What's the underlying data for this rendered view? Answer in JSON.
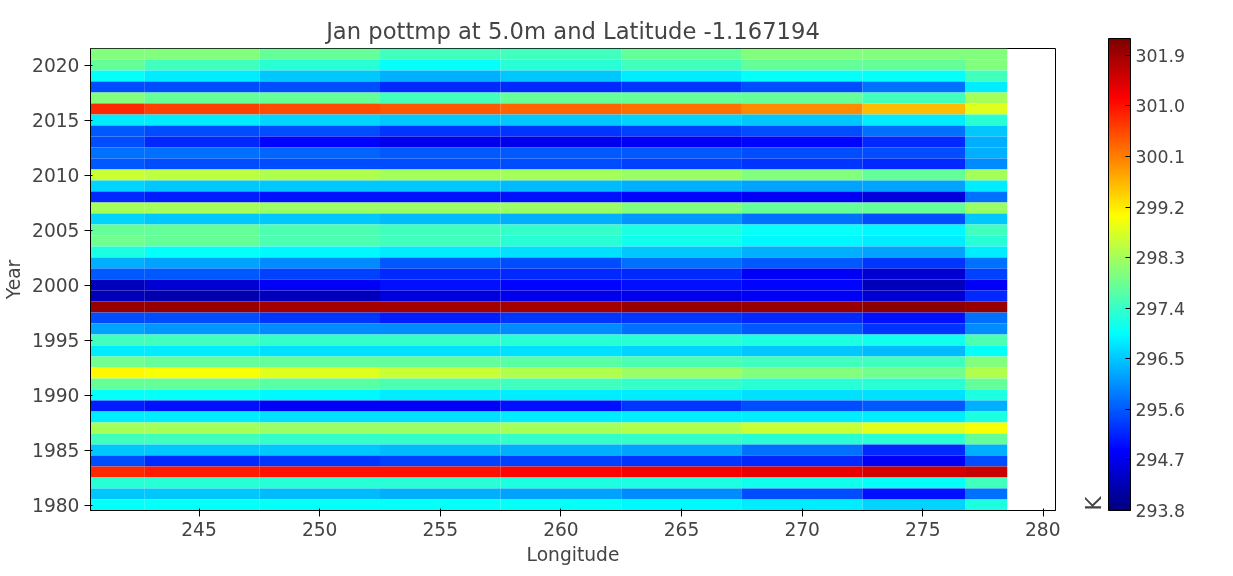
{
  "chart_data": {
    "type": "heatmap",
    "title": "Jan pottmp at 5.0m and Latitude -1.167194",
    "xlabel": "Longitude",
    "ylabel": "Year",
    "clabel": "K",
    "x": [
      240.5,
      245,
      250,
      255,
      260,
      265,
      270,
      275,
      278.5
    ],
    "y_categories": [
      null,
      "2020",
      null,
      null,
      null,
      null,
      "2015",
      null,
      null,
      null,
      null,
      "2010",
      null,
      null,
      null,
      null,
      "2005",
      null,
      null,
      null,
      null,
      "2000",
      null,
      null,
      null,
      null,
      "1995",
      null,
      null,
      null,
      null,
      "1990",
      null,
      null,
      null,
      null,
      "1985",
      null,
      null,
      null,
      null,
      "1980"
    ],
    "cells": [
      [
        298,
        298,
        297.8,
        297.5,
        297.5,
        297.8,
        298,
        298,
        298
      ],
      [
        297.8,
        297.5,
        297.3,
        297,
        297.3,
        297.5,
        297.8,
        297.8,
        298
      ],
      [
        297,
        296.8,
        296.5,
        296.3,
        296.5,
        296.8,
        297,
        297,
        297.5
      ],
      [
        295.5,
        295.5,
        295.5,
        295.2,
        295.2,
        295.3,
        295.5,
        295.8,
        296.8
      ],
      [
        298,
        297.8,
        297.8,
        297.5,
        297.8,
        297.8,
        297.8,
        297.5,
        298.3
      ],
      [
        300.8,
        300.6,
        300.5,
        300.4,
        300.3,
        300.2,
        300,
        299.6,
        298.8
      ],
      [
        296.8,
        296.8,
        296.6,
        296.5,
        296.5,
        296.6,
        296.5,
        296.8,
        297.3
      ],
      [
        295.6,
        295.5,
        295.5,
        295.3,
        295.3,
        295.4,
        295.5,
        295.8,
        296.5
      ],
      [
        295.5,
        295.2,
        294.9,
        294.7,
        294.7,
        294.8,
        294.9,
        295.2,
        296.3
      ],
      [
        295.8,
        295.8,
        295.7,
        295.6,
        295.6,
        295.6,
        295.5,
        295.5,
        296.3
      ],
      [
        295.6,
        295.5,
        295.5,
        295.5,
        295.5,
        295.4,
        295.3,
        295.2,
        296
      ],
      [
        298.6,
        298.5,
        298.4,
        298.3,
        298.3,
        298.2,
        298,
        297.8,
        298.3
      ],
      [
        296.6,
        296.5,
        296.5,
        296.5,
        296.4,
        296.3,
        296.2,
        296.2,
        296.8
      ],
      [
        295.2,
        295.1,
        295,
        295,
        295,
        294.9,
        294.8,
        294.6,
        295.8
      ],
      [
        298.3,
        298.3,
        298.2,
        298.2,
        298.2,
        298,
        297.8,
        297.8,
        298.2
      ],
      [
        296.6,
        296.5,
        296.5,
        296.4,
        296.3,
        296.1,
        295.8,
        295.5,
        296.5
      ],
      [
        297.8,
        297.8,
        297.6,
        297.5,
        297.4,
        297.2,
        297,
        296.9,
        297.5
      ],
      [
        297.9,
        297.8,
        297.6,
        297.5,
        297.3,
        297.1,
        296.9,
        296.8,
        297.3
      ],
      [
        297.2,
        297,
        296.9,
        296.8,
        296.7,
        296.5,
        296.3,
        296.2,
        296.8
      ],
      [
        296.3,
        296.2,
        296,
        295.6,
        295.5,
        295.8,
        295.6,
        295.3,
        295.8
      ],
      [
        295.6,
        295.6,
        295.4,
        295.2,
        295.2,
        295.2,
        294.8,
        294.5,
        295.4
      ],
      [
        294.3,
        294.5,
        294.8,
        295,
        294.9,
        295,
        294.9,
        294.3,
        294.8
      ],
      [
        294.3,
        294.2,
        294.3,
        294.6,
        294.7,
        294.7,
        294.8,
        294.5,
        295.2
      ],
      [
        302,
        302,
        301.9,
        301.9,
        301.9,
        302,
        302,
        302.1,
        302
      ],
      [
        295.5,
        295.5,
        295.3,
        295.1,
        295.3,
        295.3,
        295.2,
        295,
        295.8
      ],
      [
        296.2,
        296.1,
        296,
        296,
        296,
        295.8,
        295.6,
        295.3,
        296
      ],
      [
        297.5,
        297.5,
        297.4,
        297.4,
        297.3,
        297.3,
        297.2,
        297.1,
        297.6
      ],
      [
        296.8,
        296.8,
        296.7,
        296.7,
        296.7,
        296.6,
        296.5,
        296.4,
        297
      ],
      [
        297.9,
        297.8,
        297.8,
        297.8,
        297.7,
        297.6,
        297.5,
        297.5,
        298
      ],
      [
        299.1,
        299,
        298.8,
        298.6,
        298.4,
        298.2,
        298,
        297.9,
        298.4
      ],
      [
        297.8,
        297.8,
        297.7,
        297.6,
        297.5,
        297.4,
        297.3,
        297.3,
        297.8
      ],
      [
        297,
        297,
        296.9,
        296.8,
        296.8,
        296.8,
        296.7,
        296.7,
        297.2
      ],
      [
        295.1,
        295,
        294.8,
        294.8,
        295,
        295.3,
        295.5,
        295.6,
        296.3
      ],
      [
        296.8,
        296.8,
        296.7,
        296.7,
        296.8,
        296.8,
        296.8,
        296.8,
        297.2
      ],
      [
        298.3,
        298.3,
        298.2,
        298.2,
        298.3,
        298.4,
        298.6,
        298.8,
        299
      ],
      [
        297.5,
        297.5,
        297.4,
        297.4,
        297.4,
        297.4,
        297.3,
        297.3,
        297.8
      ],
      [
        296.5,
        296.5,
        296.5,
        296.4,
        296.3,
        296.2,
        295.8,
        295.2,
        296.3
      ],
      [
        295.5,
        295.2,
        295.3,
        295.4,
        295.4,
        295.3,
        295.2,
        294.8,
        295.5
      ],
      [
        300.8,
        300.9,
        301,
        301,
        301.1,
        301.2,
        301.3,
        301.5,
        301.6
      ],
      [
        297.3,
        297.3,
        297.3,
        297.3,
        297.2,
        297.2,
        297.1,
        297,
        297.5
      ],
      [
        296.5,
        296.5,
        296.4,
        296.3,
        296.2,
        296,
        295.5,
        295,
        295.8
      ],
      [
        297,
        297,
        297,
        297,
        297,
        296.9,
        296.8,
        296.6,
        297.2
      ]
    ],
    "xlim": [
      240.5,
      280.5
    ],
    "xticks": [
      245,
      250,
      255,
      260,
      265,
      270,
      275,
      280
    ],
    "clim": [
      293.8,
      302.2
    ],
    "cticks": [
      293.8,
      294.7,
      295.6,
      296.5,
      297.4,
      298.3,
      299.2,
      300.1,
      {
        "value": 301,
        "label": "301.0"
      },
      301.9
    ]
  }
}
